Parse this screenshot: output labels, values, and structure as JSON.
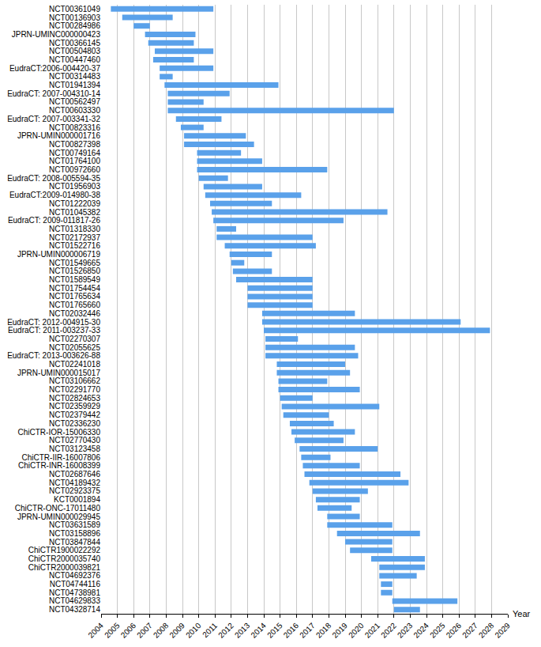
{
  "chart_data": {
    "type": "bar",
    "orientation": "horizontal",
    "x_label": "Year",
    "color": "#5aa1ea",
    "grid": true,
    "xlim": [
      2004,
      2029
    ],
    "xticks": [
      2004,
      2005,
      2006,
      2007,
      2008,
      2009,
      2010,
      2011,
      2012,
      2013,
      2014,
      2015,
      2016,
      2017,
      2018,
      2019,
      2020,
      2021,
      2022,
      2023,
      2024,
      2025,
      2026,
      2027,
      2028,
      2029
    ],
    "categories": [
      "NCT00361049",
      "NCT00136903",
      "NCT00284986",
      "JPRN-UMINC000000423",
      "NCT00366145",
      "NCT00504803",
      "NCT00447460",
      "EudraCT:2006-004420-37",
      "NCT00314483",
      "NCT01941394",
      "EudraCT: 2007-004310-14",
      "NCT00562497",
      "NCT00603330",
      "EudraCT: 2007-003341-32",
      "NCT00823316",
      "JPRN-UMIN000001716",
      "NCT00827398",
      "NCT00749164",
      "NCT01764100",
      "NCT00972660",
      "EudraCT: 2008-005594-35",
      "NCT01956903",
      "EudraCT:2009-014980-38",
      "NCT01222039",
      "NCT01045382",
      "EudraCT: 2009-011817-26",
      "NCT01318330",
      "NCT02172937",
      "NCT01522716",
      "JPRN-UMIN000006719",
      "NCT01549665",
      "NCT01526850",
      "NCT01589549",
      "NCT01754454",
      "NCT01765634",
      "NCT01765660",
      "NCT02032446",
      "EudraCT: 2012-004915-30",
      "EudraCT: 2011-003237-33",
      "NCT02270307",
      "NCT02055625",
      "EudraCT: 2013-003626-88",
      "NCT02241018",
      "JPRN-UMIN000015017",
      "NCT03106662",
      "NCT02291770",
      "NCT02824653",
      "NCT02359929",
      "NCT02379442",
      "NCT02336230",
      "ChiCTR-IOR-15006330",
      "NCT02770430",
      "NCT03123458",
      "ChiCTR-IIR-16007806",
      "ChiCTR-INR-16008399",
      "NCT02687646",
      "NCT04189432",
      "NCT02923375",
      "KCT0001894",
      "ChiCTR-ONC-17011480",
      "JPRN-UMIN000029945",
      "NCT03631589",
      "NCT03158896",
      "NCT03847844",
      "ChiCTR1900022292",
      "ChiCTR2000035740",
      "ChiCTR2000039821",
      "NCT04692376",
      "NCT04744116",
      "NCT04738981",
      "NCT04629833",
      "NCT04328714"
    ],
    "values": [
      [
        2004.6,
        2010.9
      ],
      [
        2005.3,
        2008.4
      ],
      [
        2006.0,
        2007.0
      ],
      [
        2006.7,
        2009.8
      ],
      [
        2006.9,
        2009.7
      ],
      [
        2007.3,
        2010.9
      ],
      [
        2007.2,
        2009.7
      ],
      [
        2007.6,
        2010.9
      ],
      [
        2007.6,
        2008.4
      ],
      [
        2007.9,
        2014.9
      ],
      [
        2008.1,
        2011.9
      ],
      [
        2008.1,
        2010.3
      ],
      [
        2008.1,
        2022.0
      ],
      [
        2008.6,
        2011.4
      ],
      [
        2008.9,
        2010.3
      ],
      [
        2009.1,
        2012.9
      ],
      [
        2009.1,
        2013.4
      ],
      [
        2009.9,
        2012.6
      ],
      [
        2009.9,
        2013.9
      ],
      [
        2009.9,
        2017.9
      ],
      [
        2010.0,
        2011.8
      ],
      [
        2010.3,
        2013.9
      ],
      [
        2010.4,
        2016.3
      ],
      [
        2010.7,
        2014.5
      ],
      [
        2010.8,
        2021.6
      ],
      [
        2010.9,
        2018.9
      ],
      [
        2011.1,
        2012.3
      ],
      [
        2011.1,
        2017.0
      ],
      [
        2011.6,
        2017.2
      ],
      [
        2011.9,
        2014.5
      ],
      [
        2012.0,
        2012.8
      ],
      [
        2012.1,
        2014.5
      ],
      [
        2012.3,
        2017.0
      ],
      [
        2013.0,
        2017.0
      ],
      [
        2013.0,
        2017.0
      ],
      [
        2013.0,
        2017.0
      ],
      [
        2013.9,
        2019.6
      ],
      [
        2013.9,
        2026.1
      ],
      [
        2014.0,
        2027.9
      ],
      [
        2014.1,
        2016.1
      ],
      [
        2014.1,
        2019.6
      ],
      [
        2014.1,
        2019.8
      ],
      [
        2014.8,
        2019.0
      ],
      [
        2014.8,
        2019.3
      ],
      [
        2014.9,
        2017.9
      ],
      [
        2014.9,
        2019.9
      ],
      [
        2015.0,
        2017.0
      ],
      [
        2015.1,
        2021.1
      ],
      [
        2015.2,
        2018.0
      ],
      [
        2015.6,
        2018.3
      ],
      [
        2015.7,
        2019.6
      ],
      [
        2015.9,
        2018.9
      ],
      [
        2016.2,
        2021.0
      ],
      [
        2016.3,
        2018.1
      ],
      [
        2016.4,
        2019.9
      ],
      [
        2016.5,
        2022.4
      ],
      [
        2016.8,
        2022.9
      ],
      [
        2017.0,
        2020.4
      ],
      [
        2017.2,
        2019.9
      ],
      [
        2017.3,
        2019.4
      ],
      [
        2017.9,
        2019.9
      ],
      [
        2017.9,
        2021.9
      ],
      [
        2018.5,
        2023.6
      ],
      [
        2019.0,
        2021.9
      ],
      [
        2019.3,
        2021.9
      ],
      [
        2020.6,
        2023.9
      ],
      [
        2021.1,
        2023.9
      ],
      [
        2021.1,
        2023.4
      ],
      [
        2021.2,
        2021.9
      ],
      [
        2021.2,
        2021.9
      ],
      [
        2021.9,
        2025.9
      ],
      [
        2022.0,
        2023.6
      ]
    ]
  }
}
